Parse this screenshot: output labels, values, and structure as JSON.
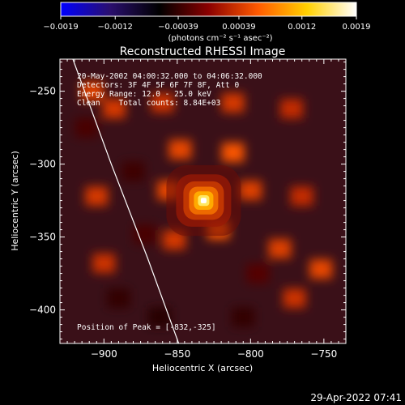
{
  "chart_data": {
    "type": "heatmap",
    "title": "Reconstructed RHESSI Image",
    "xlabel": "Heliocentric X (arcsec)",
    "ylabel": "Heliocentric Y (arcsec)",
    "xlim": [
      -930,
      -735
    ],
    "ylim": [
      -423,
      -228
    ],
    "x_ticks": [
      -900,
      -850,
      -800,
      -750
    ],
    "x_tick_labels": [
      "−900",
      "−850",
      "−800",
      "−750"
    ],
    "y_ticks": [
      -400,
      -350,
      -300,
      -250
    ],
    "y_tick_labels": [
      "−400",
      "−350",
      "−300",
      "−250"
    ],
    "colorbar": {
      "min": -0.0019,
      "max": 0.0019,
      "ticks": [
        -0.0019,
        -0.0012,
        -0.00039,
        0.00039,
        0.0012,
        0.0019
      ],
      "tick_labels": [
        "−0.0019",
        "−0.0012",
        "−0.00039",
        "0.00039",
        "0.0012",
        "0.0019"
      ],
      "unit_label": "(photons cm⁻² s⁻¹ asec⁻²)",
      "colormap": [
        "#0000ff",
        "#2a0f6e",
        "#000000",
        "#8b0000",
        "#ff5a00",
        "#ffd000",
        "#ffffff"
      ]
    },
    "annotations": {
      "time_range": "20-May-2002 04:00:32.000 to 04:06:32.000",
      "detectors": "Detectors: 3F 4F 5F 6F 7F 8F, Att 0",
      "energy_range": "Energy Range: 12.0 - 25.0 keV",
      "method_counts": "Clean    Total counts: 8.84E+03",
      "peak_position": "Position of Peak = [-832,-325]"
    },
    "peak": {
      "x": -832,
      "y": -325
    },
    "limb_curve": [
      [
        -923,
        -223
      ],
      [
        -895,
        -300
      ],
      [
        -870,
        -365
      ],
      [
        -849,
        -423
      ]
    ],
    "background_blobs": [
      {
        "x": -908,
        "y": -250,
        "v": 0.00045
      },
      {
        "x": -893,
        "y": -262,
        "v": 0.0004
      },
      {
        "x": -860,
        "y": -258,
        "v": 0.00035
      },
      {
        "x": -812,
        "y": -258,
        "v": 0.0004
      },
      {
        "x": -772,
        "y": -262,
        "v": 0.0003
      },
      {
        "x": -848,
        "y": -290,
        "v": 0.0005
      },
      {
        "x": -812,
        "y": -292,
        "v": 0.0006
      },
      {
        "x": -856,
        "y": -318,
        "v": 0.0005
      },
      {
        "x": -800,
        "y": -318,
        "v": 0.00045
      },
      {
        "x": -765,
        "y": -322,
        "v": 0.0003
      },
      {
        "x": -905,
        "y": -322,
        "v": 0.0004
      },
      {
        "x": -822,
        "y": -345,
        "v": 0.0006
      },
      {
        "x": -852,
        "y": -352,
        "v": 0.0004
      },
      {
        "x": -780,
        "y": -358,
        "v": 0.00045
      },
      {
        "x": -752,
        "y": -372,
        "v": 0.0005
      },
      {
        "x": -900,
        "y": -368,
        "v": 0.00035
      },
      {
        "x": -770,
        "y": -392,
        "v": 0.00035
      },
      {
        "x": -890,
        "y": -392,
        "v": -0.0004
      },
      {
        "x": -872,
        "y": -348,
        "v": -0.0003
      },
      {
        "x": -880,
        "y": -305,
        "v": -0.00035
      },
      {
        "x": -912,
        "y": -275,
        "v": -0.0003
      },
      {
        "x": -862,
        "y": -405,
        "v": -0.00045
      },
      {
        "x": -805,
        "y": -405,
        "v": -0.0004
      },
      {
        "x": -795,
        "y": -375,
        "v": -0.00025
      }
    ]
  },
  "footer": {
    "datetime": "29-Apr-2022 07:41"
  }
}
